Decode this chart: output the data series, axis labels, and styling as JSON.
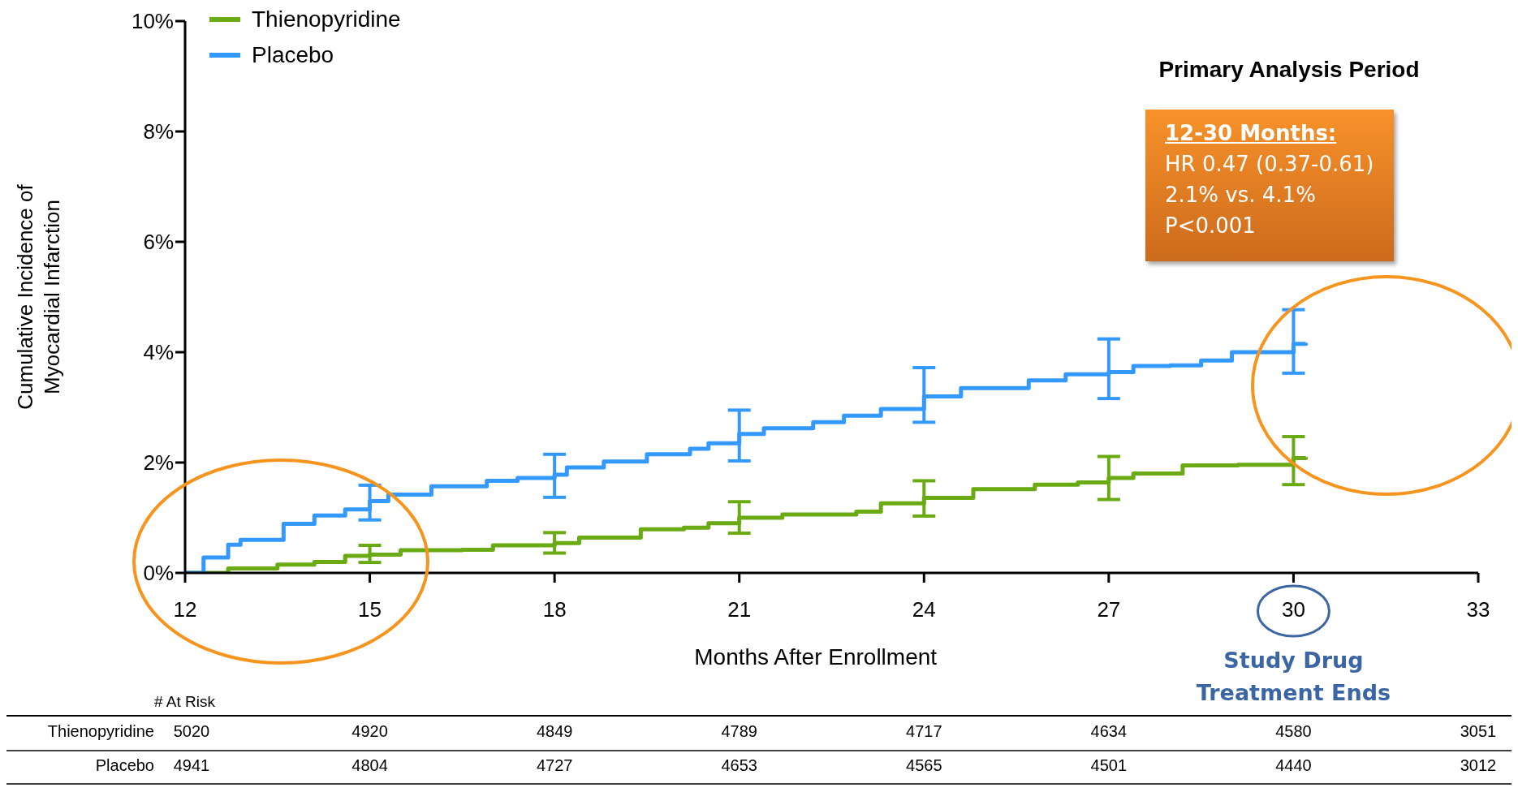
{
  "chart_data": {
    "type": "step",
    "ylabel": "Cumulative Incidence of Myocardial Infarction",
    "xlabel": "Months After Enrollment",
    "xlim": [
      12,
      33
    ],
    "xticks": [
      12,
      15,
      18,
      21,
      24,
      27,
      30,
      33
    ],
    "ylim": [
      0,
      10
    ],
    "yticks": [
      {
        "value": 0,
        "label": "0%"
      },
      {
        "value": 2,
        "label": "2%"
      },
      {
        "value": 4,
        "label": "4%"
      },
      {
        "value": 6,
        "label": "6%"
      },
      {
        "value": 8,
        "label": "8%"
      },
      {
        "value": 10,
        "label": "10%"
      }
    ],
    "legend": "top left",
    "line_style": "solid",
    "series": [
      {
        "name": "Thienopyridine",
        "color": "#6aaa12",
        "x": [
          12,
          12.7,
          13.5,
          14.1,
          14.6,
          15,
          15.5,
          16.5,
          17,
          18,
          18.4,
          19.4,
          20.1,
          20.5,
          21,
          21.7,
          22.9,
          23.3,
          24,
          24.8,
          25.8,
          26.5,
          27,
          27.4,
          28.2,
          29.1,
          30,
          30.2
        ],
        "values": [
          0,
          0.08,
          0.15,
          0.2,
          0.31,
          0.33,
          0.41,
          0.42,
          0.5,
          0.54,
          0.64,
          0.79,
          0.82,
          0.9,
          1.0,
          1.06,
          1.11,
          1.26,
          1.36,
          1.52,
          1.6,
          1.64,
          1.72,
          1.8,
          1.95,
          1.96,
          2.08,
          2.1
        ],
        "errors": [
          null,
          null,
          null,
          null,
          null,
          [
            0.19,
            0.5
          ],
          null,
          null,
          null,
          [
            0.36,
            0.73
          ],
          null,
          null,
          null,
          null,
          [
            0.72,
            1.29
          ],
          null,
          null,
          null,
          [
            1.03,
            1.67
          ],
          null,
          null,
          null,
          [
            1.33,
            2.11
          ],
          null,
          null,
          null,
          [
            1.6,
            2.47
          ],
          null
        ]
      },
      {
        "name": "Placebo",
        "color": "#3399ff",
        "x": [
          12,
          12.3,
          12.7,
          12.9,
          13.6,
          14.1,
          14.6,
          15,
          15.3,
          16,
          16.9,
          17.4,
          18,
          18.2,
          18.8,
          19.5,
          20.2,
          20.5,
          21,
          21.4,
          22.2,
          22.7,
          23.3,
          24,
          24.6,
          25.7,
          26.3,
          27,
          27.4,
          28,
          28.5,
          29,
          30,
          30.2
        ],
        "values": [
          0,
          0.28,
          0.51,
          0.6,
          0.89,
          1.04,
          1.15,
          1.3,
          1.42,
          1.57,
          1.67,
          1.72,
          1.78,
          1.91,
          2.02,
          2.15,
          2.25,
          2.35,
          2.52,
          2.62,
          2.73,
          2.85,
          2.97,
          3.2,
          3.35,
          3.49,
          3.6,
          3.64,
          3.75,
          3.76,
          3.85,
          4.0,
          4.15,
          4.17
        ],
        "errors": [
          null,
          null,
          null,
          null,
          null,
          null,
          null,
          [
            0.96,
            1.59
          ],
          null,
          null,
          null,
          null,
          [
            1.37,
            2.15
          ],
          null,
          null,
          null,
          null,
          null,
          [
            2.03,
            2.95
          ],
          null,
          null,
          null,
          null,
          [
            2.73,
            3.72
          ],
          null,
          null,
          null,
          [
            3.16,
            4.24
          ],
          null,
          null,
          null,
          null,
          [
            3.62,
            4.77
          ],
          null
        ]
      }
    ],
    "annotations": [
      "Primary Analysis Period",
      "12-30 Months:",
      "HR 0.47 (0.37-0.61)",
      "2.1% vs. 4.1%",
      "P<0.001",
      "Study Drug Treatment Ends",
      "# At Risk",
      "Thienopyridine",
      "5020",
      "4920",
      "4849",
      "4789",
      "4717",
      "4634",
      "4580",
      "3051",
      "Placebo",
      "4941",
      "4804",
      "4727",
      "4653",
      "4565",
      "4501",
      "4440",
      "3012"
    ]
  }
}
